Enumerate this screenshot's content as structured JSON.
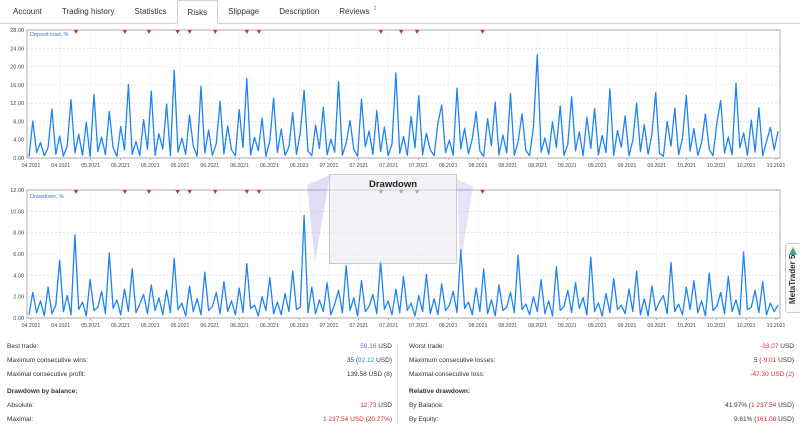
{
  "tabs": [
    {
      "label": "Account",
      "active": false
    },
    {
      "label": "Trading history",
      "active": false
    },
    {
      "label": "Statistics",
      "active": false
    },
    {
      "label": "Risks",
      "active": true
    },
    {
      "label": "Slippage",
      "active": false
    },
    {
      "label": "Description",
      "active": false
    },
    {
      "label": "Reviews",
      "active": false,
      "badge": "2"
    }
  ],
  "watermark": {
    "title": "Drawdown"
  },
  "sidebar_badge": {
    "label": "MetaTrader 5"
  },
  "colors": {
    "series": "#1f84f3",
    "marker": "#c0392b",
    "negative": "#d62a2a",
    "accent": "#3a7fd5"
  },
  "chart_data": [
    {
      "type": "line",
      "title": "",
      "legend": "Deposit load, %",
      "ylim": [
        0,
        28
      ],
      "yticks": [
        "0.00",
        "4.00",
        "8.00",
        "12.00",
        "16.00",
        "20.00",
        "24.00",
        "28.00"
      ],
      "xticks": [
        "04.2021",
        "04.2021",
        "05.2021",
        "05.2021",
        "05.2021",
        "05.2021",
        "06.2021",
        "06.2021",
        "06.2021",
        "06.2021",
        "07.2021",
        "07.2021",
        "07.2021",
        "07.2021",
        "08.2021",
        "08.2021",
        "08.2021",
        "08.2021",
        "09.2021",
        "09.2021",
        "09.2021",
        "09.2021",
        "10.2021",
        "10.2021",
        "10.2021",
        "10.2021"
      ],
      "events_at": [
        0.065,
        0.13,
        0.162,
        0.2,
        0.216,
        0.25,
        0.292,
        0.308,
        0.47,
        0.497,
        0.518,
        0.605
      ],
      "series": [
        {
          "name": "Deposit load, %",
          "values": [
            0.3,
            8.1,
            1.2,
            3.4,
            0.5,
            2.3,
            10.7,
            0.8,
            4.8,
            0.4,
            2.6,
            12.8,
            1.1,
            5.2,
            0.6,
            7.8,
            0.3,
            13.9,
            1.4,
            4.6,
            0.7,
            10.2,
            2.2,
            0.4,
            6.9,
            1.7,
            16.1,
            0.8,
            3.6,
            0.5,
            8.4,
            1.9,
            14.6,
            0.6,
            5.3,
            2.0,
            11.8,
            0.5,
            19.2,
            1.3,
            4.3,
            0.8,
            9.4,
            2.6,
            0.4,
            15.7,
            1.1,
            6.1,
            0.6,
            3.2,
            12.4,
            0.9,
            7.0,
            1.8,
            0.5,
            10.6,
            2.3,
            17.4,
            0.7,
            4.5,
            1.6,
            8.7,
            0.4,
            3.7,
            13.1,
            1.2,
            6.3,
            0.6,
            2.4,
            9.9,
            0.8,
            5.6,
            14.8,
            1.5,
            0.5,
            7.2,
            2.1,
            11.1,
            0.7,
            4.1,
            1.3,
            16.7,
            0.6,
            3.3,
            8.2,
            1.9,
            0.4,
            12.9,
            2.5,
            5.9,
            0.8,
            10.4,
            1.4,
            6.8,
            0.5,
            3.1,
            18.6,
            1.0,
            4.7,
            0.6,
            9.1,
            2.2,
            13.6,
            0.7,
            5.4,
            1.8,
            0.5,
            7.6,
            11.6,
            1.2,
            3.9,
            0.6,
            15.3,
            2.0,
            6.5,
            0.9,
            4.2,
            10.1,
            1.5,
            0.4,
            8.6,
            2.7,
            12.2,
            0.7,
            5.0,
            1.1,
            14.1,
            0.6,
            3.5,
            9.7,
            1.7,
            0.5,
            6.6,
            22.6,
            1.3,
            4.4,
            0.8,
            7.9,
            2.3,
            11.4,
            0.6,
            3.0,
            13.4,
            1.6,
            5.7,
            0.5,
            8.9,
            2.1,
            10.8,
            0.7,
            4.9,
            1.2,
            15.1,
            0.6,
            6.0,
            2.4,
            9.2,
            0.5,
            3.8,
            12.0,
            1.4,
            7.3,
            0.8,
            5.2,
            14.3,
            1.0,
            0.4,
            8.0,
            2.6,
            10.9,
            0.7,
            4.3,
            13.7,
            1.5,
            6.4,
            0.6,
            3.4,
            9.6,
            1.9,
            0.5,
            7.7,
            12.6,
            1.1,
            4.6,
            0.7,
            16.4,
            2.2,
            5.5,
            0.6,
            8.3,
            1.3,
            11.0,
            0.5,
            3.6,
            6.7,
            1.8,
            5.8
          ]
        }
      ]
    },
    {
      "type": "line",
      "title": "",
      "legend": "Drawdown, %",
      "ylim": [
        0,
        12
      ],
      "yticks": [
        "0.00",
        "2.00",
        "4.00",
        "6.00",
        "8.00",
        "10.00",
        "12.00"
      ],
      "xticks": [
        "04.2021",
        "04.2021",
        "05.2021",
        "05.2021",
        "05.2021",
        "05.2021",
        "06.2021",
        "06.2021",
        "06.2021",
        "06.2021",
        "07.2021",
        "07.2021",
        "07.2021",
        "07.2021",
        "08.2021",
        "08.2021",
        "08.2021",
        "08.2021",
        "09.2021",
        "09.2021",
        "09.2021",
        "09.2021",
        "10.2021",
        "10.2021",
        "10.2021",
        "10.2021"
      ],
      "events_at": [
        0.065,
        0.13,
        0.162,
        0.2,
        0.216,
        0.25,
        0.292,
        0.308,
        0.47,
        0.497,
        0.518,
        0.605
      ],
      "series": [
        {
          "name": "Drawdown, %",
          "values": [
            0.3,
            2.4,
            0.5,
            1.6,
            0.2,
            2.9,
            0.4,
            1.2,
            5.4,
            0.6,
            2.1,
            0.3,
            7.8,
            0.8,
            1.5,
            0.2,
            3.6,
            0.7,
            1.0,
            2.5,
            0.4,
            6.1,
            0.9,
            1.7,
            0.3,
            2.7,
            0.6,
            4.6,
            0.5,
            1.3,
            2.2,
            0.4,
            3.1,
            0.7,
            1.9,
            0.3,
            2.6,
            0.5,
            5.6,
            0.8,
            1.4,
            0.2,
            3.0,
            0.6,
            1.8,
            0.3,
            4.3,
            0.7,
            1.1,
            2.4,
            0.4,
            3.4,
            0.6,
            1.6,
            0.3,
            2.8,
            0.5,
            5.1,
            0.9,
            1.2,
            0.2,
            2.0,
            0.7,
            3.8,
            0.4,
            1.5,
            0.3,
            2.3,
            0.6,
            4.4,
            0.8,
            1.0,
            9.6,
            0.5,
            2.9,
            0.4,
            1.7,
            0.6,
            3.3,
            0.3,
            1.3,
            2.6,
            0.5,
            4.9,
            0.7,
            1.9,
            0.2,
            3.5,
            0.6,
            1.1,
            2.2,
            0.4,
            5.3,
            0.8,
            1.6,
            0.3,
            2.7,
            0.5,
            3.9,
            0.7,
            1.4,
            0.2,
            2.1,
            0.6,
            4.1,
            0.4,
            1.8,
            0.3,
            3.2,
            0.7,
            1.2,
            2.5,
            0.5,
            6.4,
            0.9,
            1.5,
            0.3,
            2.8,
            0.6,
            4.6,
            0.4,
            1.7,
            0.2,
            3.1,
            0.7,
            1.0,
            2.4,
            0.5,
            5.9,
            0.8,
            1.3,
            0.3,
            2.0,
            0.6,
            3.6,
            0.4,
            1.6,
            0.2,
            4.8,
            0.7,
            1.1,
            2.6,
            0.5,
            3.3,
            0.9,
            1.9,
            0.3,
            5.7,
            0.6,
            1.4,
            0.2,
            2.3,
            0.5,
            3.7,
            0.8,
            1.2,
            0.4,
            2.7,
            0.6,
            4.4,
            0.3,
            1.8,
            0.2,
            3.0,
            0.7,
            1.5,
            2.1,
            0.4,
            5.2,
            0.6,
            1.3,
            0.3,
            2.9,
            0.8,
            3.5,
            0.5,
            1.6,
            0.2,
            4.2,
            0.7,
            1.1,
            2.4,
            0.4,
            3.9,
            0.6,
            1.7,
            0.3,
            6.2,
            0.8,
            1.0,
            2.6,
            0.5,
            3.4,
            0.3,
            1.4,
            0.6,
            1.2
          ]
        }
      ]
    }
  ],
  "stats": {
    "left": {
      "best_trade": {
        "label": "Best trade:",
        "value": "59.16",
        "unit": " USD"
      },
      "max_cons_wins": {
        "label": "Maximum consecutive wins:",
        "count": "35 (",
        "value": "92.12",
        "unit": " USD)"
      },
      "max_cons_profit": {
        "label": "Maximal consecutive profit:",
        "value": "139.58 USD (8)"
      },
      "section_title": "Drawdown by balance:",
      "absolute": {
        "label": "Absolute:",
        "value": "12.73",
        "unit": " USD"
      },
      "maximal": {
        "label": "Maximal:",
        "value": "1 237.54 USD (20.27%)"
      }
    },
    "right": {
      "worst_trade": {
        "label": "Worst trade:",
        "value": "-33.07",
        "unit": " USD"
      },
      "max_cons_losses": {
        "label": "Maximum consecutive losses:",
        "count": "5 (",
        "value": "-9.01",
        "unit": " USD)"
      },
      "max_cons_loss": {
        "label": "Maximal consecutive loss:",
        "value": "-47.30 USD (2)"
      },
      "section_title": "Relative drawdown:",
      "by_balance": {
        "label": "By Balance:",
        "percent": "41.97% (",
        "value": "1 237.54",
        "unit": " USD)"
      },
      "by_equity": {
        "label": "By Equity:",
        "percent": "9.61% (",
        "value": "161.08",
        "unit": " USD)"
      }
    }
  }
}
